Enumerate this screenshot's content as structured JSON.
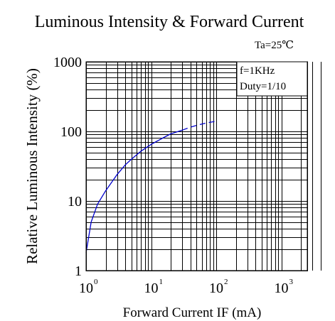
{
  "chart_data": {
    "type": "line",
    "title": "Luminous Intensity & Forward Current",
    "xlabel": "Forward Current IF (mA)",
    "ylabel": "Relative Luminous Intensity (%)",
    "x_scale": "log",
    "y_scale": "log",
    "xlim": [
      1,
      5000
    ],
    "ylim": [
      1,
      1000
    ],
    "grid": true,
    "y_ticks": [
      {
        "value": 1000,
        "label": "1000"
      },
      {
        "value": 100,
        "label": "100"
      },
      {
        "value": 10,
        "label": "10"
      },
      {
        "value": 1,
        "label": "1"
      }
    ],
    "x_ticks": [
      {
        "value": 1,
        "base": "10",
        "exp": "0"
      },
      {
        "value": 10,
        "base": "10",
        "exp": "1"
      },
      {
        "value": 100,
        "base": "10",
        "exp": "2"
      },
      {
        "value": 1000,
        "base": "10",
        "exp": "3"
      }
    ],
    "annotations": {
      "condition": "Ta=25℃",
      "frequency": "f=1KHz",
      "duty": "Duty=1/10"
    },
    "series": [
      {
        "style": "solid",
        "color": "#0000cc",
        "x": [
          1,
          1.2,
          1.5,
          2,
          3,
          4,
          5,
          7,
          10,
          15,
          20,
          30
        ],
        "y": [
          1.8,
          5,
          9,
          14,
          24,
          33,
          40,
          52,
          65,
          80,
          92,
          104
        ]
      },
      {
        "style": "dashed",
        "color": "#0000cc",
        "x": [
          30,
          40,
          50,
          70,
          100
        ],
        "y": [
          104,
          115,
          122,
          132,
          140
        ]
      }
    ]
  }
}
